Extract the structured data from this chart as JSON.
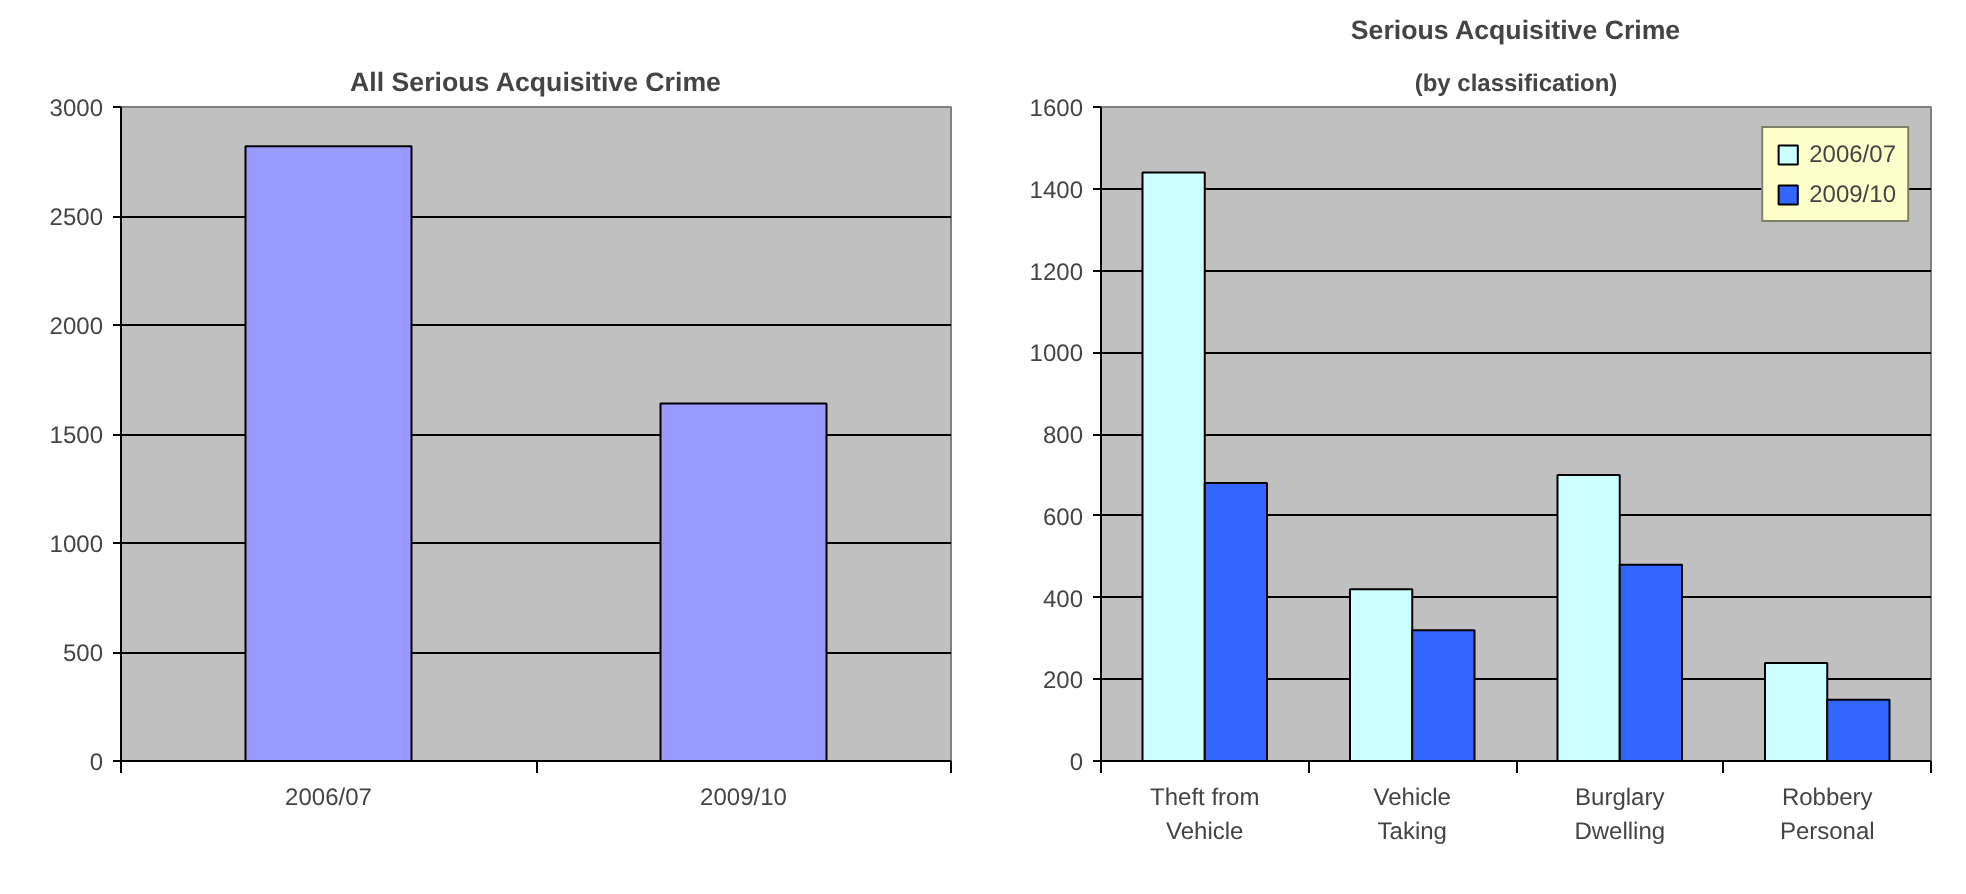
{
  "chart_data": [
    {
      "type": "bar",
      "title": "All Serious Acquisitive Crime",
      "categories": [
        "2006/07",
        "2009/10"
      ],
      "values": [
        2820,
        1640
      ],
      "color": "#9999ff",
      "ylim": [
        0,
        3000
      ],
      "yticks": [
        0,
        500,
        1000,
        1500,
        2000,
        2500,
        3000
      ],
      "grid": "y",
      "legend": false
    },
    {
      "type": "bar",
      "title": "Serious Acquisitive Crime",
      "subtitle": "(by classification)",
      "categories": [
        "Theft from\nVehicle",
        "Vehicle\nTaking",
        "Burglary\nDwelling",
        "Robbery\nPersonal"
      ],
      "series": [
        {
          "name": "2006/07",
          "color": "#ccffff",
          "values": [
            1440,
            420,
            700,
            240
          ]
        },
        {
          "name": "2009/10",
          "color": "#3366ff",
          "values": [
            680,
            320,
            480,
            150
          ]
        }
      ],
      "ylim": [
        0,
        1600
      ],
      "yticks": [
        0,
        200,
        400,
        600,
        800,
        1000,
        1200,
        1400,
        1600
      ],
      "grid": "y",
      "legend": "top right"
    }
  ]
}
